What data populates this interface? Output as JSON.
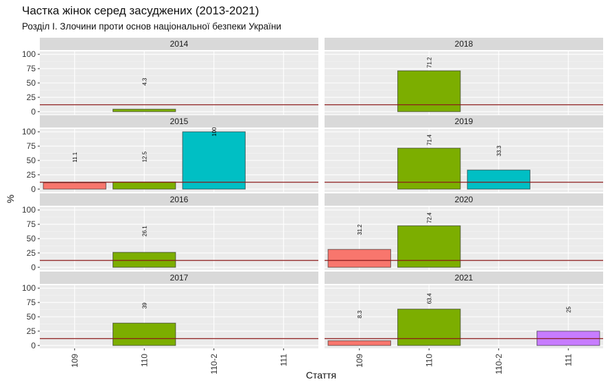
{
  "chart_data": {
    "type": "bar",
    "title": "Частка жінок серед засуджених (2013-2021)",
    "subtitle": "Розділ І. Злочини проти основ національної безпеки України",
    "xlabel": "Стаття",
    "ylabel": "%",
    "categories": [
      "109",
      "110",
      "110-2",
      "111"
    ],
    "y_ticks": [
      "0",
      "25",
      "50",
      "75",
      "100"
    ],
    "ylim": [
      0,
      100
    ],
    "reference_line": 12,
    "colors": {
      "109": "#f8766d",
      "110": "#7cae00",
      "110-2": "#00bfc4",
      "111": "#c77cff",
      "reference_line": "#8b1a1a",
      "panel_bg": "#ebebeb",
      "strip_bg": "#d9d9d9"
    },
    "panels": [
      {
        "year": "2014",
        "values": [
          null,
          4.3,
          null,
          null
        ],
        "labels": [
          "",
          "4.3",
          "",
          ""
        ]
      },
      {
        "year": "2018",
        "values": [
          null,
          71.2,
          null,
          null
        ],
        "labels": [
          "",
          "71.2",
          "",
          ""
        ]
      },
      {
        "year": "2015",
        "values": [
          11.1,
          12.5,
          100,
          null
        ],
        "labels": [
          "11.1",
          "12.5",
          "100",
          ""
        ]
      },
      {
        "year": "2019",
        "values": [
          null,
          71.4,
          33.3,
          null
        ],
        "labels": [
          "",
          "71.4",
          "33.3",
          ""
        ]
      },
      {
        "year": "2016",
        "values": [
          null,
          26.1,
          null,
          null
        ],
        "labels": [
          "",
          "26.1",
          "",
          ""
        ]
      },
      {
        "year": "2020",
        "values": [
          31.2,
          72.4,
          null,
          null
        ],
        "labels": [
          "31.2",
          "72.4",
          "",
          ""
        ]
      },
      {
        "year": "2017",
        "values": [
          null,
          39,
          null,
          null
        ],
        "labels": [
          "",
          "39",
          "",
          ""
        ]
      },
      {
        "year": "2021",
        "values": [
          8.3,
          63.4,
          null,
          25
        ],
        "labels": [
          "8.3",
          "63.4",
          "",
          "25"
        ]
      }
    ]
  }
}
